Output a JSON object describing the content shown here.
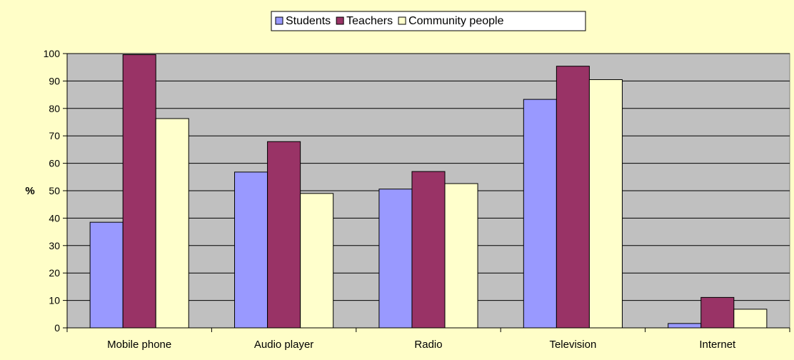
{
  "chart_data": {
    "type": "bar",
    "title": "",
    "xlabel": "",
    "ylabel": "%",
    "ylim": [
      0,
      100
    ],
    "yticks": [
      0,
      10,
      20,
      30,
      40,
      50,
      60,
      70,
      80,
      90,
      100
    ],
    "grid": true,
    "legend_position": "top",
    "categories": [
      "Mobile phone",
      "Audio player",
      "Radio",
      "Television",
      "Internet"
    ],
    "series": [
      {
        "name": "Students",
        "color": "#9999ff",
        "values": [
          38.5,
          56.8,
          50.6,
          83.3,
          1.6
        ]
      },
      {
        "name": "Teachers",
        "color": "#993366",
        "values": [
          99.6,
          67.9,
          57.0,
          95.4,
          11.1
        ]
      },
      {
        "name": "Community people",
        "color": "#ffffcc",
        "values": [
          76.3,
          49.0,
          52.6,
          90.5,
          6.8
        ]
      }
    ]
  },
  "colors": {
    "page_background": "#fffec8",
    "plot_background": "#c0c0c0"
  }
}
